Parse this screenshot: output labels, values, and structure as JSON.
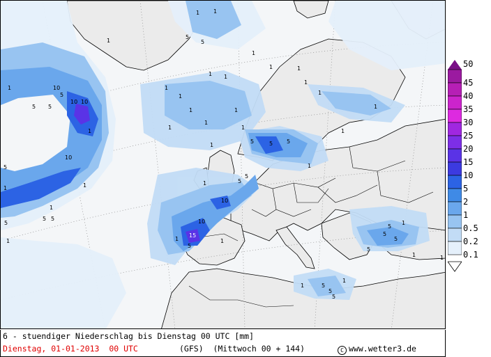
{
  "map": {
    "region": "Europe / North Atlantic",
    "variable": "precipitation",
    "unit": "mm"
  },
  "legend": {
    "labels": [
      "50",
      "45",
      "40",
      "35",
      "30",
      "25",
      "20",
      "15",
      "10",
      "5",
      "2",
      "1",
      "0.5",
      "0.2",
      "0.1"
    ],
    "colors": [
      "#7a0f87",
      "#9b1aa0",
      "#b61fb5",
      "#cc24cc",
      "#dd2ae0",
      "#a027e0",
      "#7d2ee6",
      "#5a33e6",
      "#3c3ae0",
      "#2c63e4",
      "#3f8ae6",
      "#6aa7ec",
      "#98c4f1",
      "#c2dcf6",
      "#e5f0fb"
    ]
  },
  "caption": {
    "title": "6 - stuendiger Niederschlag bis Dienstag 00 UTC [mm]",
    "date": "Dienstag, 01-01-2013  00 UTC",
    "model": "(GFS)  (Mittwoch 00 + 144)",
    "copyright_symbol": "C",
    "copyright": "www.wetter3.de"
  }
}
